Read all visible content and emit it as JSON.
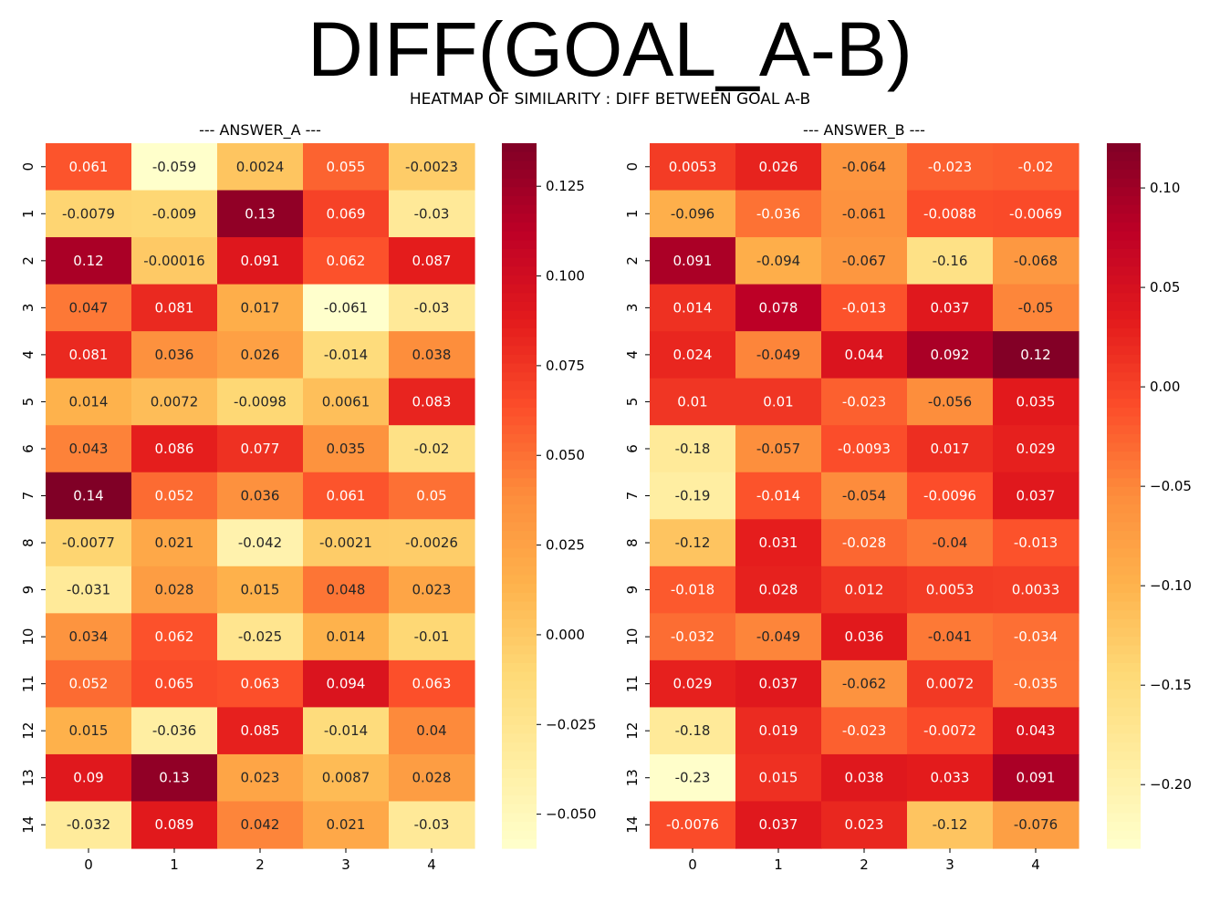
{
  "figure": {
    "title": "DIFF(GOAL_A-B)",
    "subtitle": "HEATMAP OF SIMILARITY : DIFF BETWEEN GOAL A-B"
  },
  "chart_data": [
    {
      "type": "heatmap",
      "title": "--- ANSWER_A ---",
      "colormap": "YlOrRd",
      "x": [
        "0",
        "1",
        "2",
        "3",
        "4"
      ],
      "y": [
        "0",
        "1",
        "2",
        "3",
        "4",
        "5",
        "6",
        "7",
        "8",
        "9",
        "10",
        "11",
        "12",
        "13",
        "14"
      ],
      "values": [
        [
          0.061,
          -0.059,
          0.0024,
          0.055,
          -0.0023
        ],
        [
          -0.0079,
          -0.009,
          0.13,
          0.069,
          -0.03
        ],
        [
          0.12,
          -0.00016,
          0.091,
          0.062,
          0.087
        ],
        [
          0.047,
          0.081,
          0.017,
          -0.061,
          -0.03
        ],
        [
          0.081,
          0.036,
          0.026,
          -0.014,
          0.038
        ],
        [
          0.014,
          0.0072,
          -0.0098,
          0.0061,
          0.083
        ],
        [
          0.043,
          0.086,
          0.077,
          0.035,
          -0.02
        ],
        [
          0.14,
          0.052,
          0.036,
          0.061,
          0.05
        ],
        [
          -0.0077,
          0.021,
          -0.042,
          -0.0021,
          -0.0026
        ],
        [
          -0.031,
          0.028,
          0.015,
          0.048,
          0.023
        ],
        [
          0.034,
          0.062,
          -0.025,
          0.014,
          -0.01
        ],
        [
          0.052,
          0.065,
          0.063,
          0.094,
          0.063
        ],
        [
          0.015,
          -0.036,
          0.085,
          -0.014,
          0.04
        ],
        [
          0.09,
          0.13,
          0.023,
          0.0087,
          0.028
        ],
        [
          -0.032,
          0.089,
          0.042,
          0.021,
          -0.03
        ]
      ],
      "labels": [
        [
          "0.061",
          "-0.059",
          "0.0024",
          "0.055",
          "-0.0023"
        ],
        [
          "-0.0079",
          "-0.009",
          "0.13",
          "0.069",
          "-0.03"
        ],
        [
          "0.12",
          "-0.00016",
          "0.091",
          "0.062",
          "0.087"
        ],
        [
          "0.047",
          "0.081",
          "0.017",
          "-0.061",
          "-0.03"
        ],
        [
          "0.081",
          "0.036",
          "0.026",
          "-0.014",
          "0.038"
        ],
        [
          "0.014",
          "0.0072",
          "-0.0098",
          "0.0061",
          "0.083"
        ],
        [
          "0.043",
          "0.086",
          "0.077",
          "0.035",
          "-0.02"
        ],
        [
          "0.14",
          "0.052",
          "0.036",
          "0.061",
          "0.05"
        ],
        [
          "-0.0077",
          "0.021",
          "-0.042",
          "-0.0021",
          "-0.0026"
        ],
        [
          "-0.031",
          "0.028",
          "0.015",
          "0.048",
          "0.023"
        ],
        [
          "0.034",
          "0.062",
          "-0.025",
          "0.014",
          "-0.01"
        ],
        [
          "0.052",
          "0.065",
          "0.063",
          "0.094",
          "0.063"
        ],
        [
          "0.015",
          "-0.036",
          "0.085",
          "-0.014",
          "0.04"
        ],
        [
          "0.09",
          "0.13",
          "0.023",
          "0.0087",
          "0.028"
        ],
        [
          "-0.032",
          "0.089",
          "0.042",
          "0.021",
          "-0.03"
        ]
      ],
      "colorbar": {
        "range": [
          -0.0595,
          0.137
        ],
        "ticks": [
          -0.05,
          -0.025,
          0.0,
          0.025,
          0.05,
          0.075,
          0.1,
          0.125
        ],
        "tick_labels": [
          "−0.050",
          "−0.025",
          "0.000",
          "0.025",
          "0.050",
          "0.075",
          "0.100",
          "0.125"
        ]
      }
    },
    {
      "type": "heatmap",
      "title": "--- ANSWER_B ---",
      "colormap": "YlOrRd",
      "x": [
        "0",
        "1",
        "2",
        "3",
        "4"
      ],
      "y": [
        "0",
        "1",
        "2",
        "3",
        "4",
        "5",
        "6",
        "7",
        "8",
        "9",
        "10",
        "11",
        "12",
        "13",
        "14"
      ],
      "values": [
        [
          0.0053,
          0.026,
          -0.064,
          -0.023,
          -0.02
        ],
        [
          -0.096,
          -0.036,
          -0.061,
          -0.0088,
          -0.0069
        ],
        [
          0.091,
          -0.094,
          -0.067,
          -0.16,
          -0.068
        ],
        [
          0.014,
          0.078,
          -0.013,
          0.037,
          -0.05
        ],
        [
          0.024,
          -0.049,
          0.044,
          0.092,
          0.12
        ],
        [
          0.01,
          0.01,
          -0.023,
          -0.056,
          0.035
        ],
        [
          -0.18,
          -0.057,
          -0.0093,
          0.017,
          0.029
        ],
        [
          -0.19,
          -0.014,
          -0.054,
          -0.0096,
          0.037
        ],
        [
          -0.12,
          0.031,
          -0.028,
          -0.04,
          -0.013
        ],
        [
          -0.018,
          0.028,
          0.012,
          0.0053,
          0.0033
        ],
        [
          -0.032,
          -0.049,
          0.036,
          -0.041,
          -0.034
        ],
        [
          0.029,
          0.037,
          -0.062,
          0.0072,
          -0.035
        ],
        [
          -0.18,
          0.019,
          -0.023,
          -0.0072,
          0.043
        ],
        [
          -0.23,
          0.015,
          0.038,
          0.033,
          0.091
        ],
        [
          -0.0076,
          0.037,
          0.023,
          -0.12,
          -0.076
        ]
      ],
      "labels": [
        [
          "0.0053",
          "0.026",
          "-0.064",
          "-0.023",
          "-0.02"
        ],
        [
          "-0.096",
          "-0.036",
          "-0.061",
          "-0.0088",
          "-0.0069"
        ],
        [
          "0.091",
          "-0.094",
          "-0.067",
          "-0.16",
          "-0.068"
        ],
        [
          "0.014",
          "0.078",
          "-0.013",
          "0.037",
          "-0.05"
        ],
        [
          "0.024",
          "-0.049",
          "0.044",
          "0.092",
          "0.12"
        ],
        [
          "0.01",
          "0.01",
          "-0.023",
          "-0.056",
          "0.035"
        ],
        [
          "-0.18",
          "-0.057",
          "-0.0093",
          "0.017",
          "0.029"
        ],
        [
          "-0.19",
          "-0.014",
          "-0.054",
          "-0.0096",
          "0.037"
        ],
        [
          "-0.12",
          "0.031",
          "-0.028",
          "-0.04",
          "-0.013"
        ],
        [
          "-0.018",
          "0.028",
          "0.012",
          "0.0053",
          "0.0033"
        ],
        [
          "-0.032",
          "-0.049",
          "0.036",
          "-0.041",
          "-0.034"
        ],
        [
          "0.029",
          "0.037",
          "-0.062",
          "0.0072",
          "-0.035"
        ],
        [
          "-0.18",
          "0.019",
          "-0.023",
          "-0.0072",
          "0.043"
        ],
        [
          "-0.23",
          "0.015",
          "0.038",
          "0.033",
          "0.091"
        ],
        [
          "-0.0076",
          "0.037",
          "0.023",
          "-0.12",
          "-0.076"
        ]
      ],
      "colorbar": {
        "range": [
          -0.232,
          0.1225
        ],
        "ticks": [
          -0.2,
          -0.15,
          -0.1,
          -0.05,
          0.0,
          0.05,
          0.1
        ],
        "tick_labels": [
          "−0.20",
          "−0.15",
          "−0.10",
          "−0.05",
          "0.00",
          "0.05",
          "0.10"
        ]
      }
    }
  ]
}
